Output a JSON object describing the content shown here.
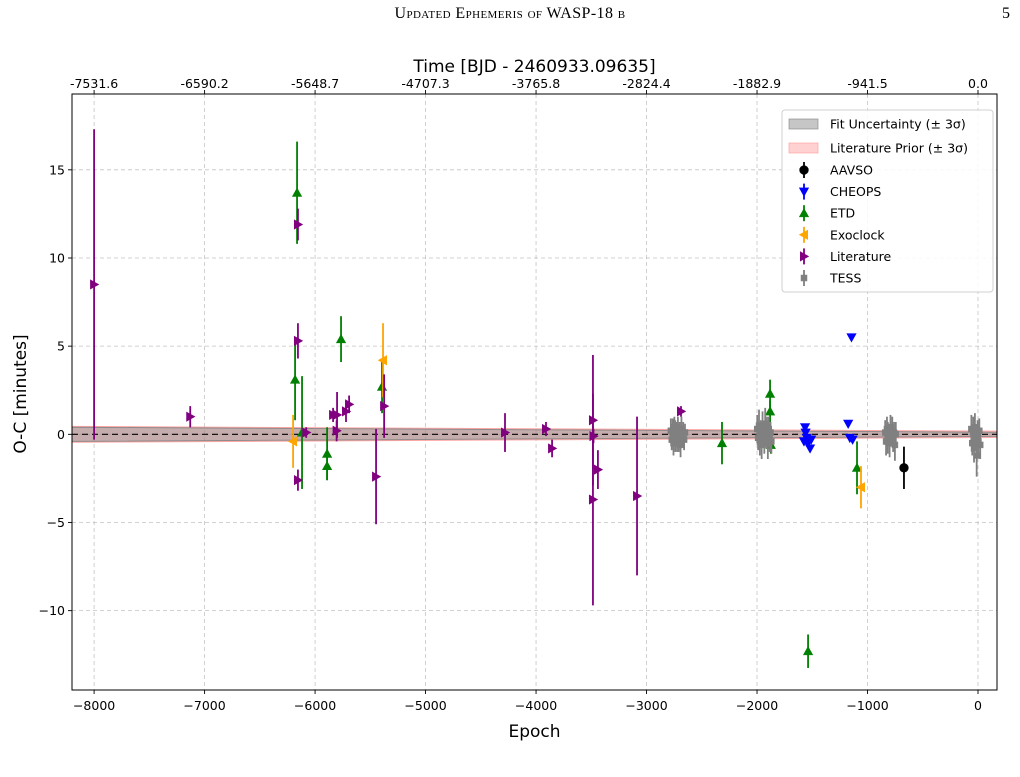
{
  "page": {
    "running_header": "Updated Ephemeris of WASP-18 b",
    "page_number": "5"
  },
  "chart_data": {
    "type": "scatter",
    "title": "",
    "xlabel": "Epoch",
    "ylabel": "O-C [minutes]",
    "top_xlabel": "Time [BJD - 2460933.09635]",
    "xlim": [
      -8200,
      172
    ],
    "ylim": [
      -14.5,
      19.3
    ],
    "grid": true,
    "legend_placement": "top-right",
    "x_ticks": {
      "values": [
        -8000,
        -7000,
        -6000,
        -5000,
        -4000,
        -3000,
        -2000,
        -1000,
        0
      ],
      "labels": [
        "−8000",
        "−7000",
        "−6000",
        "−5000",
        "−4000",
        "−3000",
        "−2000",
        "−1000",
        "0"
      ]
    },
    "top_x_ticks": {
      "values": [
        -8000,
        -7000,
        -6000,
        -5000,
        -4000,
        -3000,
        -2000,
        -1000,
        0
      ],
      "labels": [
        "-7531.6",
        "-6590.2",
        "-5648.7",
        "-4707.3",
        "-3765.8",
        "-2824.4",
        "-1882.9",
        "-941.5",
        "0.0"
      ]
    },
    "y_ticks": {
      "values": [
        15,
        10,
        5,
        0,
        -5,
        -10
      ],
      "labels": [
        "15",
        "10",
        "5",
        "0",
        "−5",
        "−10"
      ]
    },
    "reference_line": {
      "y": 0,
      "style": "dashed",
      "color": "#000000"
    },
    "bands": [
      {
        "name": "Fit Uncertainty (± 3σ)",
        "color": "#808080",
        "x": [
          -8200,
          172
        ],
        "upper": [
          0.4,
          0.12
        ],
        "lower": [
          -0.4,
          -0.12
        ]
      },
      {
        "name": "Literature Prior (± 3σ)",
        "color": "#ff9999",
        "x": [
          -8200,
          172
        ],
        "upper": [
          0.45,
          0.18
        ],
        "lower": [
          -0.45,
          -0.18
        ]
      }
    ],
    "series": [
      {
        "name": "AAVSO",
        "marker": "circle",
        "color": "#000000",
        "x": [
          -670
        ],
        "y": [
          -1.9
        ],
        "yerr": [
          1.2
        ]
      },
      {
        "name": "CHEOPS",
        "marker": "triangle_down",
        "color": "#0000ff",
        "x": [
          -1575,
          -1565,
          -1560,
          -1550,
          -1540,
          -1530,
          -1520,
          -1510,
          -1175,
          -1160,
          -1145,
          -1135
        ],
        "y": [
          -0.4,
          0.4,
          0.1,
          -0.2,
          -0.5,
          -0.3,
          -0.8,
          -0.3,
          0.6,
          -0.2,
          5.5,
          -0.3
        ],
        "yerr": [
          0.15,
          0.15,
          0.15,
          0.15,
          0.15,
          0.15,
          0.15,
          0.15,
          0.15,
          0.15,
          0.15,
          0.15
        ]
      },
      {
        "name": "ETD",
        "marker": "triangle_up",
        "color": "#008000",
        "x": [
          -6163,
          -6181,
          -6118,
          -5891,
          -5891,
          -5765,
          -5394,
          -2317,
          -1882,
          -1882,
          -1875,
          -1538,
          -1095
        ],
        "y": [
          13.7,
          3.1,
          0.1,
          -1.1,
          -1.8,
          5.4,
          2.7,
          -0.5,
          2.3,
          1.3,
          -0.6,
          -12.3,
          -1.9
        ],
        "yerr": [
          2.9,
          2.3,
          3.2,
          1.5,
          0.8,
          1.3,
          1.5,
          1.2,
          0.8,
          0.6,
          0.5,
          0.95,
          1.5
        ]
      },
      {
        "name": "Exoclock",
        "marker": "triangle_left",
        "color": "#ffa500",
        "x": [
          -6199,
          -5385,
          -1059
        ],
        "y": [
          -0.4,
          4.2,
          -3.0
        ],
        "yerr": [
          1.5,
          2.1,
          1.2
        ]
      },
      {
        "name": "Literature",
        "marker": "triangle_right",
        "color": "#800080",
        "x": [
          -8000,
          -7130,
          -6155,
          -6155,
          -6155,
          -6080,
          -5837,
          -5801,
          -5805,
          -5720,
          -5692,
          -5448,
          -5375,
          -4281,
          -3910,
          -3855,
          -3485,
          -3485,
          -3480,
          -3440,
          -3086,
          -2688
        ],
        "y": [
          8.5,
          1.0,
          11.9,
          5.3,
          -2.6,
          0.1,
          1.1,
          1.1,
          0.2,
          1.3,
          1.7,
          -2.4,
          1.6,
          0.1,
          0.3,
          -0.8,
          0.8,
          -3.7,
          -0.1,
          -2.0,
          -3.5,
          1.3
        ],
        "yerr": [
          8.8,
          0.6,
          0.9,
          1.0,
          0.6,
          0.3,
          0.4,
          1.3,
          0.6,
          0.6,
          0.5,
          2.7,
          1.8,
          1.1,
          0.4,
          0.5,
          3.7,
          6.0,
          0.4,
          1.1,
          4.5,
          0.3
        ]
      },
      {
        "name": "TESS",
        "marker": "square",
        "color": "#808080",
        "x": [
          -2780,
          -2772,
          -2764,
          -2756,
          -2748,
          -2740,
          -2732,
          -2724,
          -2716,
          -2708,
          -2700,
          -2692,
          -2684,
          -2676,
          -2668,
          -2660,
          -2652,
          -1998,
          -1990,
          -1982,
          -1974,
          -1966,
          -1958,
          -1950,
          -1942,
          -1934,
          -1926,
          -1918,
          -1910,
          -1902,
          -1894,
          -1886,
          -1878,
          -1870,
          -840,
          -832,
          -824,
          -816,
          -808,
          -800,
          -792,
          -784,
          -776,
          -768,
          -760,
          -752,
          -744,
          -60,
          -52,
          -44,
          -36,
          -28,
          -20,
          -12,
          -4,
          4,
          12,
          20
        ],
        "y": [
          0.2,
          -0.3,
          0.1,
          -0.5,
          0.4,
          -0.1,
          0.0,
          -0.4,
          0.3,
          -0.2,
          0.1,
          -0.6,
          0.2,
          -0.1,
          0.0,
          -0.3,
          0.1,
          0.3,
          -0.2,
          0.5,
          -0.4,
          0.1,
          -0.6,
          0.4,
          0.0,
          -0.3,
          0.6,
          -0.1,
          0.2,
          -0.5,
          0.3,
          -0.2,
          0.1,
          -0.4,
          0.1,
          -0.4,
          0.3,
          -0.2,
          0.0,
          -0.5,
          0.4,
          -0.1,
          0.2,
          -0.3,
          0.1,
          -0.6,
          0.0,
          0.3,
          -0.5,
          0.1,
          -0.8,
          0.4,
          -0.2,
          -1.2,
          0.0,
          -0.4,
          0.2,
          -0.6
        ],
        "yerr": [
          0.7,
          0.6,
          0.8,
          0.7,
          0.6,
          0.9,
          0.7,
          0.6,
          0.7,
          0.8,
          0.6,
          0.7,
          0.8,
          0.6,
          0.7,
          0.6,
          0.5,
          0.8,
          0.7,
          0.9,
          0.8,
          0.7,
          0.8,
          0.9,
          0.7,
          0.8,
          0.9,
          0.7,
          0.8,
          0.9,
          0.7,
          0.8,
          0.6,
          0.7,
          0.7,
          0.8,
          0.7,
          0.9,
          0.6,
          0.8,
          0.7,
          0.6,
          0.8,
          0.7,
          0.6,
          0.9,
          0.7,
          0.8,
          0.7,
          0.9,
          0.8,
          0.8,
          0.7,
          1.2,
          0.8,
          0.9,
          0.7,
          0.8
        ]
      }
    ]
  }
}
